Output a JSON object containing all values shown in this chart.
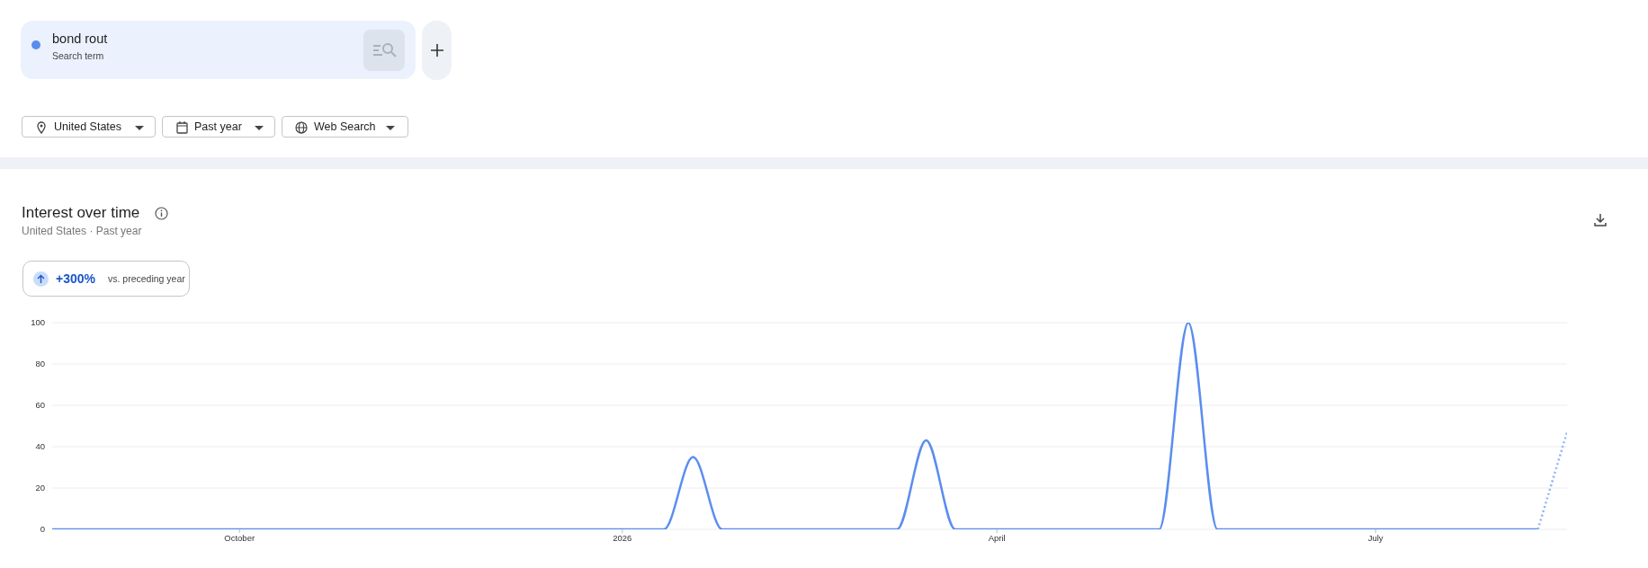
{
  "chart_data": {
    "type": "line",
    "title": "Interest over time",
    "subtitle": "United States · Past year",
    "annotations": [
      "Search term",
      "United States",
      "Past year",
      "Web Search",
      "+300%",
      "vs. preceding year"
    ],
    "x": [
      "2025-08-17",
      "2025-08-24",
      "2025-08-31",
      "2025-09-07",
      "2025-09-14",
      "2025-09-21",
      "2025-09-28",
      "2025-10-05",
      "2025-10-12",
      "2025-10-19",
      "2025-10-26",
      "2025-11-02",
      "2025-11-09",
      "2025-11-16",
      "2025-11-23",
      "2025-11-30",
      "2025-12-07",
      "2025-12-14",
      "2025-12-21",
      "2025-12-28",
      "2026-01-04",
      "2026-01-11",
      "2026-01-18",
      "2026-01-25",
      "2026-02-01",
      "2026-02-08",
      "2026-02-15",
      "2026-02-22",
      "2026-03-01",
      "2026-03-08",
      "2026-03-15",
      "2026-03-22",
      "2026-03-29",
      "2026-04-05",
      "2026-04-12",
      "2026-04-19",
      "2026-04-26",
      "2026-05-03",
      "2026-05-10",
      "2026-05-17",
      "2026-05-24",
      "2026-05-31",
      "2026-06-07",
      "2026-06-14",
      "2026-06-21",
      "2026-06-28",
      "2026-07-05",
      "2026-07-12",
      "2026-07-19",
      "2026-07-26",
      "2026-08-02",
      "2026-08-09",
      "2026-08-16"
    ],
    "series": [
      {
        "name": "bond rout",
        "color": "#5b8def",
        "line_style": "solid",
        "values": [
          0,
          0,
          0,
          0,
          0,
          0,
          0,
          0,
          0,
          0,
          0,
          0,
          0,
          0,
          0,
          0,
          0,
          0,
          0,
          0,
          0,
          0,
          35,
          0,
          0,
          0,
          0,
          0,
          0,
          0,
          43,
          0,
          0,
          0,
          0,
          0,
          0,
          0,
          0,
          100,
          0,
          0,
          0,
          0,
          0,
          0,
          0,
          0,
          0,
          0,
          0,
          0,
          null
        ]
      },
      {
        "color": "#8fb2f4",
        "line_style": "dotted",
        "values": [
          null,
          null,
          null,
          null,
          null,
          null,
          null,
          null,
          null,
          null,
          null,
          null,
          null,
          null,
          null,
          null,
          null,
          null,
          null,
          null,
          null,
          null,
          null,
          null,
          null,
          null,
          null,
          null,
          null,
          null,
          null,
          null,
          null,
          null,
          null,
          null,
          null,
          null,
          null,
          null,
          null,
          null,
          null,
          null,
          null,
          null,
          null,
          null,
          null,
          null,
          null,
          0,
          47
        ]
      }
    ],
    "xlim": [
      "2025-08-17",
      "2026-08-16"
    ],
    "xticks": [
      {
        "value": "2025-10-01",
        "label": "October"
      },
      {
        "value": "2026-01-01",
        "label": "2026"
      },
      {
        "value": "2026-04-01",
        "label": "April"
      },
      {
        "value": "2026-07-01",
        "label": "July"
      }
    ],
    "ylim": [
      0,
      100
    ],
    "yticks": [
      0,
      20,
      40,
      60,
      80,
      100
    ],
    "grid": "y",
    "legend": "top left"
  }
}
